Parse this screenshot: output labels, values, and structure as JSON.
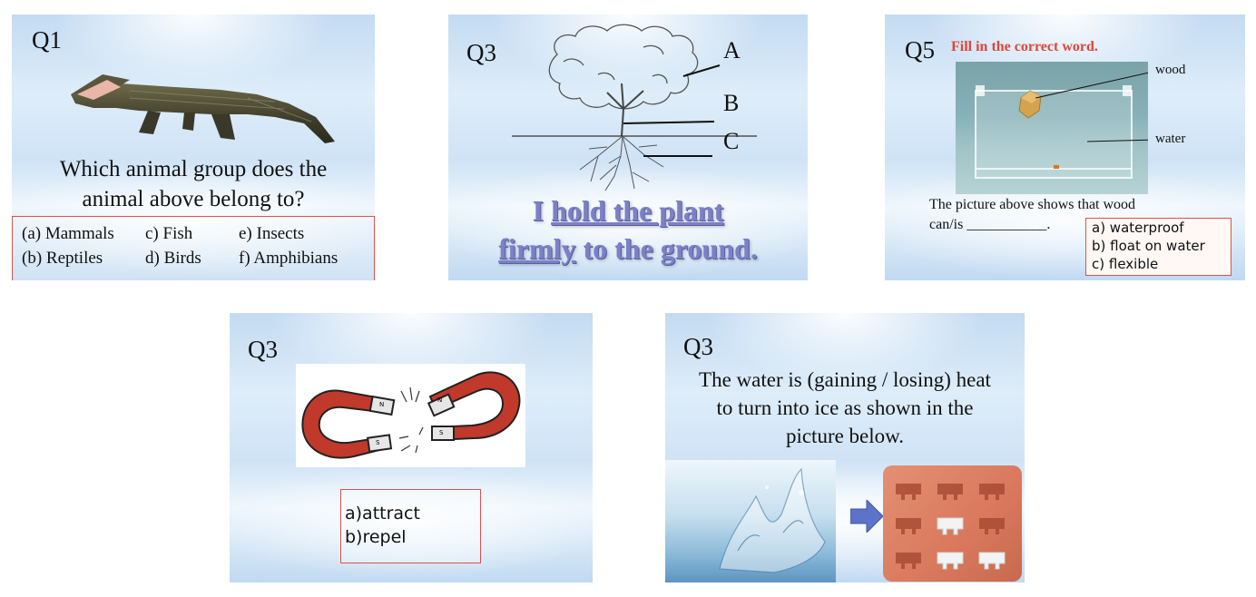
{
  "slide1": {
    "label": "Q1",
    "question_line1": "Which animal group does the",
    "question_line2": "animal above belong to?",
    "options": {
      "a": "(a)  Mammals",
      "b": "(b)  Reptiles",
      "c": "c)   Fish",
      "d": "d)   Birds",
      "e": "e)   Insects",
      "f": "f)   Amphibians"
    },
    "image": "crocodile-image"
  },
  "slide2": {
    "label": "Q3",
    "diagram_labels": {
      "a": "A",
      "b": "B",
      "c": "C"
    },
    "line1_a": "I ",
    "line1_b": "hold the plant",
    "line2_a": "firmly",
    "line2_b": " to the ground.",
    "image": "tree-diagram"
  },
  "slide3": {
    "label": "Q5",
    "instruction": "Fill in the correct word.",
    "label_wood": "wood",
    "label_water": "water",
    "desc_line1": "The picture above shows that wood",
    "desc_line2": "can/is ___________.",
    "options": {
      "a": "a) waterproof",
      "b": "b) float on water",
      "c": "c) flexible"
    }
  },
  "slide4": {
    "label": "Q3",
    "options": {
      "a": "a)attract",
      "b": "b)repel"
    },
    "magnet_labels": {
      "n1": "N",
      "s1": "S",
      "n2": "N",
      "s2": "S"
    }
  },
  "slide5": {
    "label": "Q3",
    "question_line1": "The water is (gaining / losing) heat",
    "question_line2": "to turn into ice as shown in the",
    "question_line3": "picture below."
  },
  "colors": {
    "accent_red": "#e0463a",
    "box_border": "#d9534f",
    "title_purple": "#7b80c8",
    "arrow_blue": "#5b74c9"
  }
}
